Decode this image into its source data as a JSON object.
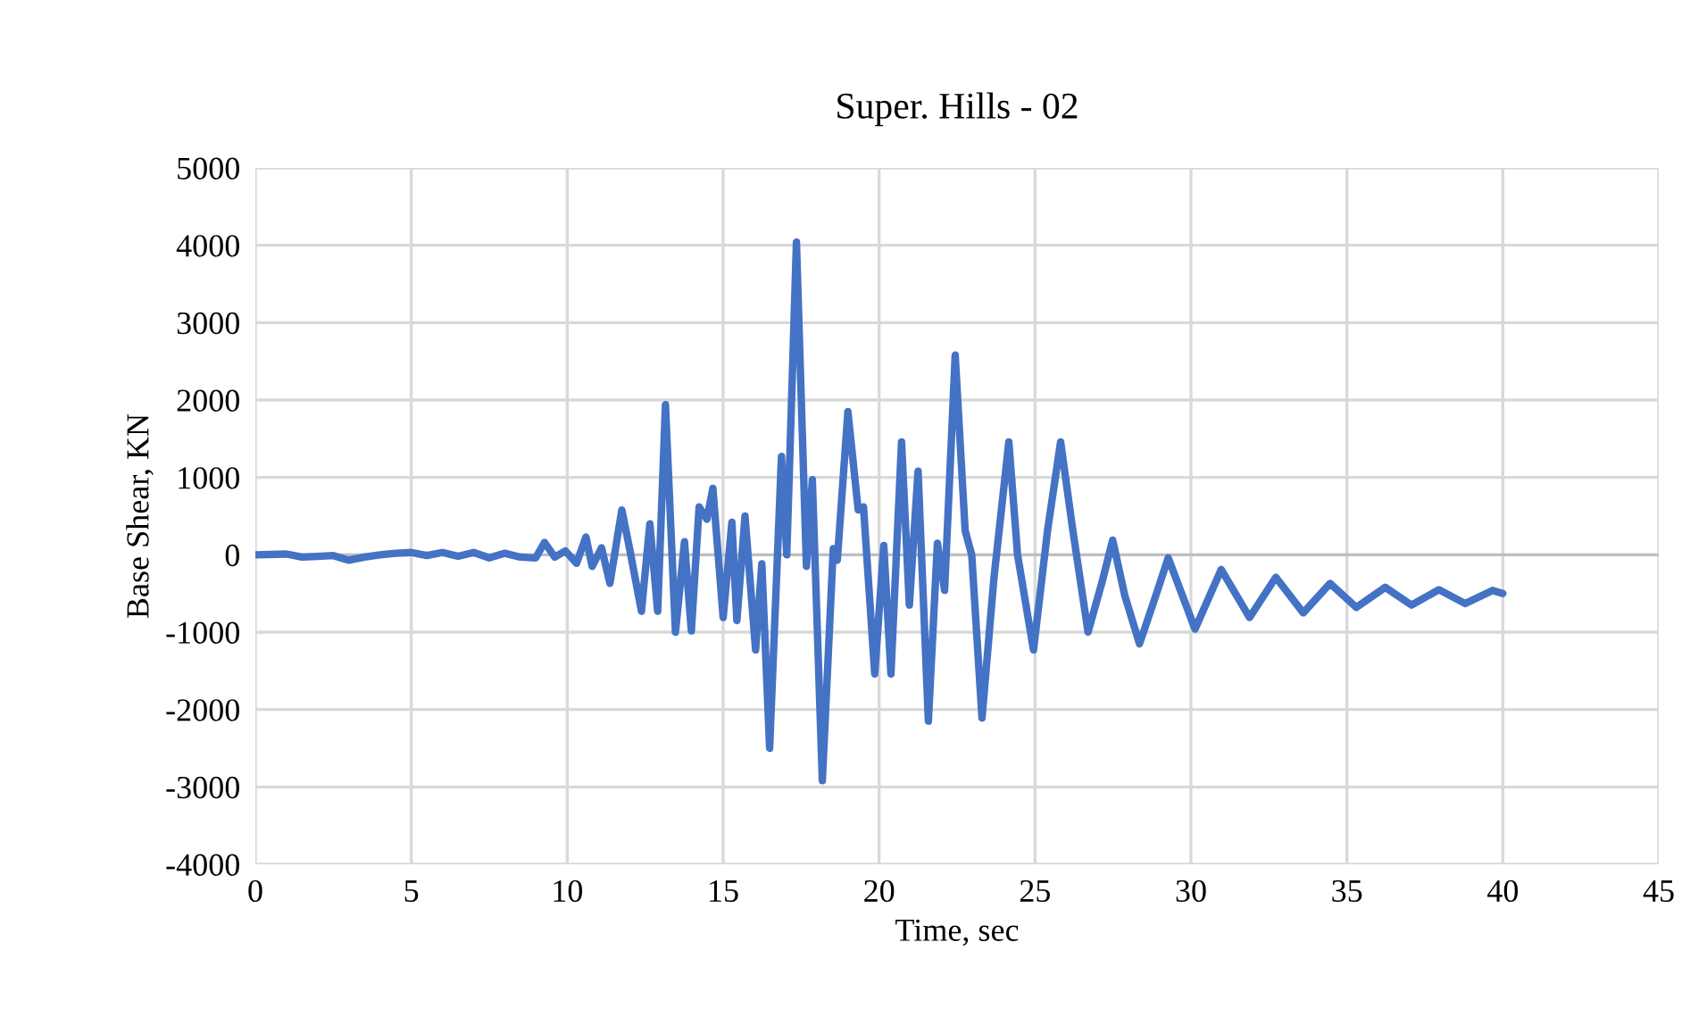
{
  "chart_data": {
    "type": "line",
    "title": "Super. Hills - 02",
    "xlabel": "Time, sec",
    "ylabel": "Base Shear, KN",
    "series": [
      {
        "color": "#4472c4",
        "x": [
          0,
          1.0,
          1.5,
          2.0,
          2.5,
          3.0,
          3.5,
          4.0,
          4.5,
          5.0,
          5.5,
          6.0,
          6.5,
          7.0,
          7.5,
          8.0,
          8.5,
          8.99,
          9.27,
          9.6,
          9.94,
          10.3,
          10.6,
          10.8,
          11.1,
          11.37,
          11.75,
          12.0,
          12.38,
          12.65,
          12.9,
          13.15,
          13.47,
          13.76,
          13.98,
          14.23,
          14.48,
          14.67,
          15.0,
          15.28,
          15.44,
          15.7,
          16.04,
          16.24,
          16.49,
          16.87,
          17.04,
          17.35,
          17.67,
          17.86,
          18.18,
          18.53,
          18.66,
          19.0,
          19.33,
          19.5,
          19.86,
          20.15,
          20.38,
          20.72,
          20.97,
          21.25,
          21.58,
          21.87,
          22.1,
          22.44,
          22.76,
          22.97,
          23.3,
          23.68,
          24.16,
          24.44,
          24.95,
          25.4,
          25.82,
          26.2,
          26.7,
          27.15,
          27.49,
          27.88,
          28.35,
          28.87,
          29.27,
          30.13,
          30.97,
          31.88,
          32.72,
          33.6,
          34.46,
          35.3,
          36.23,
          37.07,
          37.95,
          38.79,
          39.67,
          40.0
        ],
        "values": [
          0,
          10,
          -30,
          -20,
          -10,
          -70,
          -30,
          0,
          20,
          30,
          -10,
          30,
          -20,
          30,
          -40,
          20,
          -30,
          -40,
          160,
          -30,
          50,
          -110,
          230,
          -150,
          90,
          -370,
          580,
          80,
          -730,
          400,
          -730,
          1940,
          -1000,
          170,
          -985,
          620,
          460,
          860,
          -810,
          420,
          -850,
          500,
          -1230,
          -115,
          -2500,
          1270,
          0,
          4040,
          -150,
          970,
          -2920,
          80,
          -70,
          1850,
          580,
          620,
          -1540,
          120,
          -1540,
          1460,
          -650,
          1080,
          -2150,
          150,
          -460,
          2580,
          310,
          0,
          -2110,
          -310,
          1460,
          0,
          -1230,
          310,
          1460,
          350,
          -1000,
          -350,
          190,
          -530,
          -1150,
          -530,
          -40,
          -960,
          -190,
          -810,
          -290,
          -750,
          -370,
          -680,
          -420,
          -650,
          -450,
          -630,
          -460,
          -500
        ]
      }
    ],
    "xlim": [
      0,
      45
    ],
    "xticks": [
      0,
      5,
      10,
      15,
      20,
      25,
      30,
      35,
      40,
      45
    ],
    "ylim": [
      -4000,
      5000
    ],
    "yticks": [
      -4000,
      -3000,
      -2000,
      -1000,
      0,
      1000,
      2000,
      3000,
      4000,
      5000
    ],
    "grid": true,
    "legend": false
  }
}
